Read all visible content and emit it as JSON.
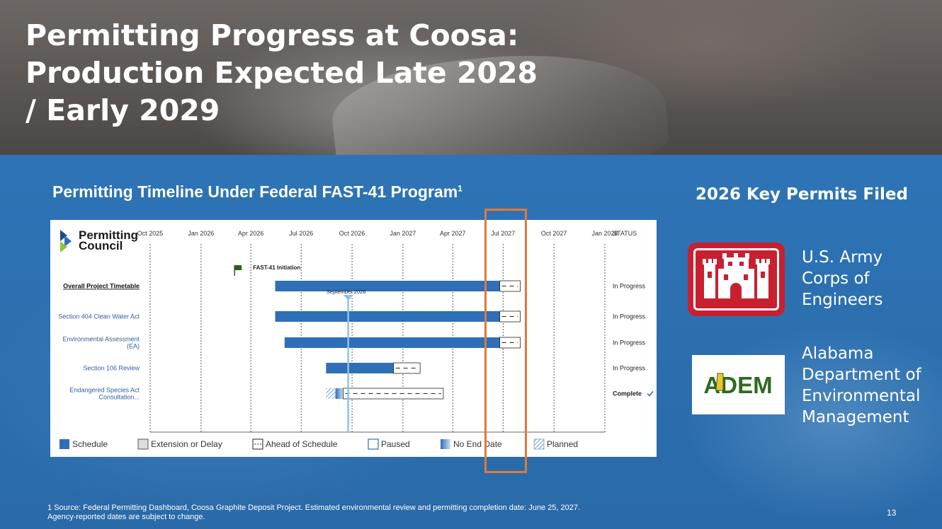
{
  "slide": {
    "title_lines": [
      "Permitting Progress at Coosa:",
      "Production Expected Late 2028",
      "/ Early 2029"
    ],
    "subheading": "Permitting Timeline Under Federal FAST-41 Program",
    "subheading_sup": "1",
    "right_heading": "2026 Key Permits Filed",
    "agencies": [
      {
        "name_lines": [
          "U.S. Army",
          "Corps of",
          "Engineers"
        ],
        "icon": "castle-icon"
      },
      {
        "name_lines": [
          "Alabama",
          "Department of",
          "Environmental",
          "Management"
        ],
        "logo_text": "ADEM",
        "icon": "alabama-map-icon"
      }
    ],
    "footnote_lines": [
      "1 Source: Federal Permitting Dashboard, Coosa Graphite Deposit Project. Estimated environmental review and permitting completion date: June 25, 2027.",
      "Agency-reported dates are subject to change."
    ],
    "page_number": "13",
    "colors": {
      "accent": "#2e6fb7",
      "highlight": "#e07a3a",
      "usace_red": "#c8202f",
      "adem_green": "#2e6b1f"
    }
  },
  "chart_data": {
    "type": "gantt",
    "logo_text_lines": [
      "Permitting",
      "Council"
    ],
    "x_ticks": [
      "Oct 2025",
      "Jan 2026",
      "Apr 2026",
      "Jul 2026",
      "Oct 2026",
      "Jan 2027",
      "Apr 2027",
      "Jul 2027",
      "Oct 2027",
      "Jan 2028"
    ],
    "status_header": "STATUS",
    "milestone": {
      "label": "FAST-41 Initiation",
      "date": "2026-04"
    },
    "marker": {
      "label": "September 2026",
      "date": "2026-09"
    },
    "rows": [
      {
        "label_lines": [
          "Overall Project Timetable"
        ],
        "bold": true,
        "schedule": [
          "2026-05-15",
          "2027-06-25"
        ],
        "ahead": [
          "2027-06-25",
          "2027-08-01"
        ],
        "status": "In Progress"
      },
      {
        "label_lines": [
          "Section 404 Clean Water Act"
        ],
        "schedule": [
          "2026-05-15",
          "2027-06-25"
        ],
        "ahead": [
          "2027-06-25",
          "2027-08-01"
        ],
        "status": "In Progress"
      },
      {
        "label_lines": [
          "Environmental Assessment",
          "(EA)"
        ],
        "schedule": [
          "2026-06-01",
          "2027-06-25"
        ],
        "ahead": [
          "2027-06-25",
          "2027-08-01"
        ],
        "status": "In Progress"
      },
      {
        "label_lines": [
          "Section 106 Review"
        ],
        "schedule": [
          "2026-08-15",
          "2026-12-15"
        ],
        "ahead": [
          "2026-12-15",
          "2027-02-01"
        ],
        "status": "In Progress"
      },
      {
        "label_lines": [
          "Endangered Species Act",
          "Consultation..."
        ],
        "planned": [
          "2026-08-15",
          "2026-09-01"
        ],
        "no_end": [
          "2026-09-01",
          "2026-09-15"
        ],
        "ahead": [
          "2026-09-15",
          "2027-03-15"
        ],
        "status": "Complete",
        "status_check": true
      }
    ],
    "legend": [
      "Schedule",
      "Extension or Delay",
      "Ahead of Schedule",
      "Paused",
      "No End Date",
      "Planned"
    ]
  }
}
